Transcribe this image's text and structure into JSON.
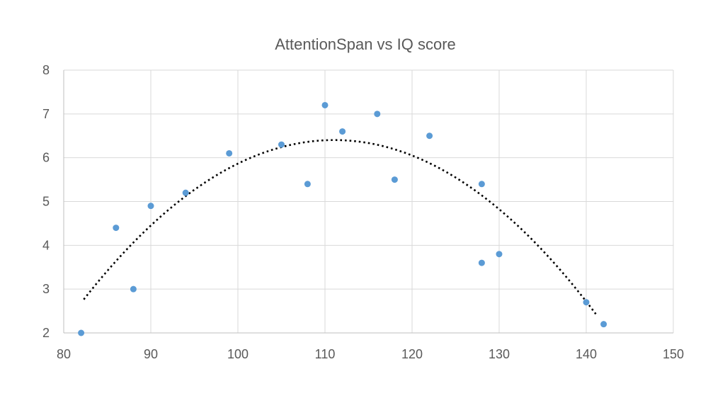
{
  "chart_data": {
    "type": "scatter",
    "title": "AttentionSpan vs IQ score",
    "xlabel": "",
    "ylabel": "",
    "xlim": [
      80,
      150
    ],
    "ylim": [
      2,
      8
    ],
    "x_ticks": [
      80,
      90,
      100,
      110,
      120,
      130,
      140,
      150
    ],
    "y_ticks": [
      2,
      3,
      4,
      5,
      6,
      7,
      8
    ],
    "grid": true,
    "legend": "none",
    "series": [
      {
        "color": "#5b9bd5",
        "points": [
          {
            "x": 82,
            "y": 2.0
          },
          {
            "x": 86,
            "y": 4.4
          },
          {
            "x": 88,
            "y": 3.0
          },
          {
            "x": 90,
            "y": 4.9
          },
          {
            "x": 94,
            "y": 5.2
          },
          {
            "x": 99,
            "y": 6.1
          },
          {
            "x": 105,
            "y": 6.3
          },
          {
            "x": 108,
            "y": 5.4
          },
          {
            "x": 110,
            "y": 7.2
          },
          {
            "x": 112,
            "y": 6.6
          },
          {
            "x": 116,
            "y": 7.0
          },
          {
            "x": 118,
            "y": 5.5
          },
          {
            "x": 122,
            "y": 6.5
          },
          {
            "x": 128,
            "y": 5.4
          },
          {
            "x": 128,
            "y": 3.6
          },
          {
            "x": 130,
            "y": 3.8
          },
          {
            "x": 140,
            "y": 2.7
          },
          {
            "x": 142,
            "y": 2.2
          }
        ]
      }
    ],
    "trendline": {
      "type": "polynomial-2",
      "color": "#000000",
      "style": "dotted",
      "x_range": [
        82.3,
        141.1
      ],
      "coefficients": [
        -0.004401,
        0.97754,
        -47.8787
      ]
    }
  }
}
